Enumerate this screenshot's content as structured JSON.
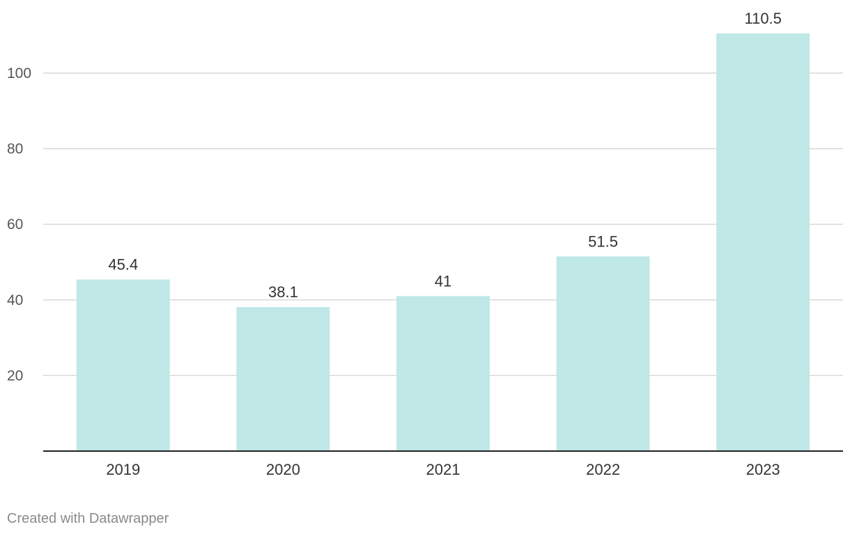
{
  "chart_data": {
    "type": "bar",
    "categories": [
      "2019",
      "2020",
      "2021",
      "2022",
      "2023"
    ],
    "values": [
      45.4,
      38.1,
      41,
      51.5,
      110.5
    ],
    "value_labels": [
      "45.4",
      "38.1",
      "41",
      "51.5",
      "110.5"
    ],
    "title": "",
    "xlabel": "",
    "ylabel": "",
    "ylim": [
      0,
      110.5
    ],
    "yticks": [
      20,
      40,
      60,
      80,
      100
    ],
    "grid": true,
    "legend": "none",
    "colors": {
      "bar": "#bfe8e7",
      "grid": "#d9d9d9",
      "baseline": "#222222",
      "tick_label": "#555555",
      "value_label": "#333333",
      "category_label": "#333333"
    }
  },
  "footer": {
    "credit": "Created with Datawrapper"
  }
}
